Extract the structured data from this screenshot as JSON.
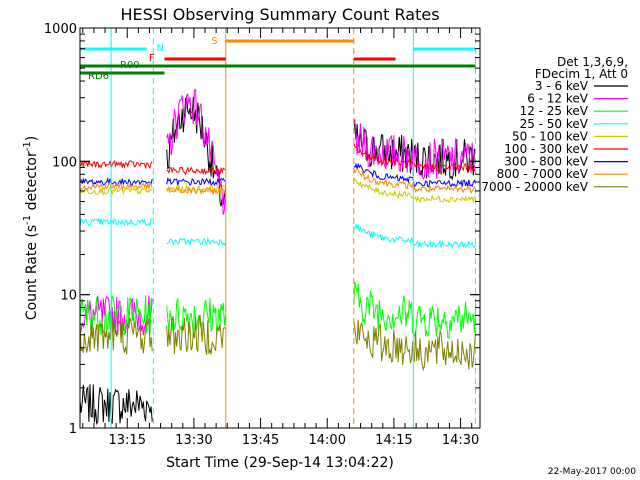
{
  "chart_data": {
    "type": "line",
    "title": "HESSI Observing Summary Count Rates",
    "xlabel": "Start Time (29-Sep-14 13:04:22)",
    "ylabel_main": "Count Rate (s",
    "ylabel_sup1": "-1",
    "ylabel_mid": " detector",
    "ylabel_sup2": "-1",
    "ylabel_end": ")",
    "y_scale": "log",
    "ylim": [
      1,
      1000
    ],
    "xlim_minutes": [
      0,
      90
    ],
    "x_ticks": [
      {
        "label": "13:15",
        "minute": 10.63
      },
      {
        "label": "13:30",
        "minute": 25.63
      },
      {
        "label": "13:45",
        "minute": 40.63
      },
      {
        "label": "14:00",
        "minute": 55.63
      },
      {
        "label": "14:15",
        "minute": 70.63
      },
      {
        "label": "14:30",
        "minute": 85.63
      }
    ],
    "y_ticks": [
      {
        "label": "1",
        "value": 1
      },
      {
        "label": "10",
        "value": 10
      },
      {
        "label": "100",
        "value": 100
      },
      {
        "label": "1000",
        "value": 1000
      }
    ],
    "legend_header": [
      "Det 1,3,6,9,",
      "FDecim 1, Att 0"
    ],
    "legend_placement": "right",
    "series": [
      {
        "name": "3 - 6 keV",
        "color": "#000000",
        "pre_saa": 1.5,
        "flare_peak": 250,
        "post": 110
      },
      {
        "name": "6 - 12 keV",
        "color": "#ff00ff",
        "pre_saa": 7,
        "flare_peak": 280,
        "post": 110
      },
      {
        "name": "12 - 25 keV",
        "color": "#00ff00",
        "pre_saa": 7,
        "flare_peak": 7,
        "post": 7
      },
      {
        "name": "25 - 50 keV",
        "color": "#00ffff",
        "pre_saa": 35,
        "flare_peak": 25,
        "post": 25
      },
      {
        "name": "50 - 100 keV",
        "color": "#cccc00",
        "pre_saa": 60,
        "flare_peak": 62,
        "post": 55
      },
      {
        "name": "100 - 300 keV",
        "color": "#ff0000",
        "pre_saa": 95,
        "flare_peak": 85,
        "post": 95
      },
      {
        "name": "300 - 800 keV",
        "color": "#0000ff",
        "pre_saa": 70,
        "flare_peak": 70,
        "post": 72
      },
      {
        "name": "800 - 7000 keV",
        "color": "#ff8800",
        "pre_saa": 65,
        "flare_peak": 60,
        "post": 65
      },
      {
        "name": "7000 - 20000 keV",
        "color": "#808000",
        "pre_saa": 5,
        "flare_peak": 5,
        "post": 4
      }
    ],
    "flags": [
      {
        "label": "N",
        "color": "#00ffff"
      },
      {
        "label": "S",
        "color": "#ff8800"
      },
      {
        "label": "F",
        "color": "#ff0000"
      },
      {
        "label": "R00",
        "color": "#008000"
      },
      {
        "label": "RD6",
        "color": "#008000"
      }
    ],
    "footer_date": "22-May-2017 00:00"
  }
}
